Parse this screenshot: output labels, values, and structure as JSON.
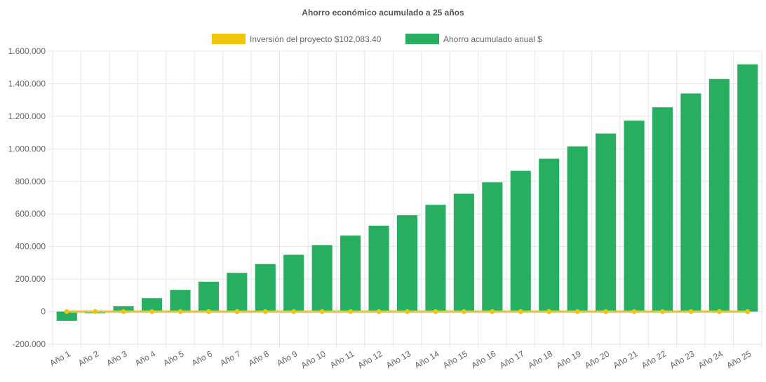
{
  "chart_data": {
    "type": "bar",
    "title": "Ahorro económico acumulado a 25 años",
    "categories": [
      "Año 1",
      "Año 2",
      "Año 3",
      "Año 4",
      "Año 5",
      "Año 6",
      "Año 7",
      "Año 8",
      "Año 9",
      "Año 10",
      "Año 11",
      "Año 12",
      "Año 13",
      "Año 14",
      "Año 15",
      "Año 16",
      "Año 17",
      "Año 18",
      "Año 19",
      "Año 20",
      "Año 21",
      "Año 22",
      "Año 23",
      "Año 24",
      "Año 25"
    ],
    "ylim": [
      -200000,
      1600000
    ],
    "yticks": [
      -200000,
      0,
      200000,
      400000,
      600000,
      800000,
      1000000,
      1200000,
      1400000,
      1600000
    ],
    "ytick_labels": [
      "-200.000",
      "0",
      "200.000",
      "400.000",
      "600.000",
      "800.000",
      "1.000.000",
      "1.200.000",
      "1.400.000",
      "1.600.000"
    ],
    "legend_position": "top",
    "grid": true,
    "series": [
      {
        "name": "Inversión del proyecto $102,083.40",
        "kind": "line",
        "color": "#f1c40f",
        "values": [
          0,
          0,
          0,
          0,
          0,
          0,
          0,
          0,
          0,
          0,
          0,
          0,
          0,
          0,
          0,
          0,
          0,
          0,
          0,
          0,
          0,
          0,
          0,
          0,
          0
        ]
      },
      {
        "name": "Ahorro acumulado anual $",
        "kind": "bar",
        "color": "#27ae60",
        "values": [
          -57000,
          -10000,
          33000,
          83000,
          133000,
          184000,
          238000,
          292000,
          349000,
          408000,
          467000,
          528000,
          592000,
          656000,
          724000,
          794000,
          865000,
          939000,
          1015000,
          1094000,
          1173000,
          1255000,
          1340000,
          1429000,
          1519000
        ]
      }
    ]
  }
}
